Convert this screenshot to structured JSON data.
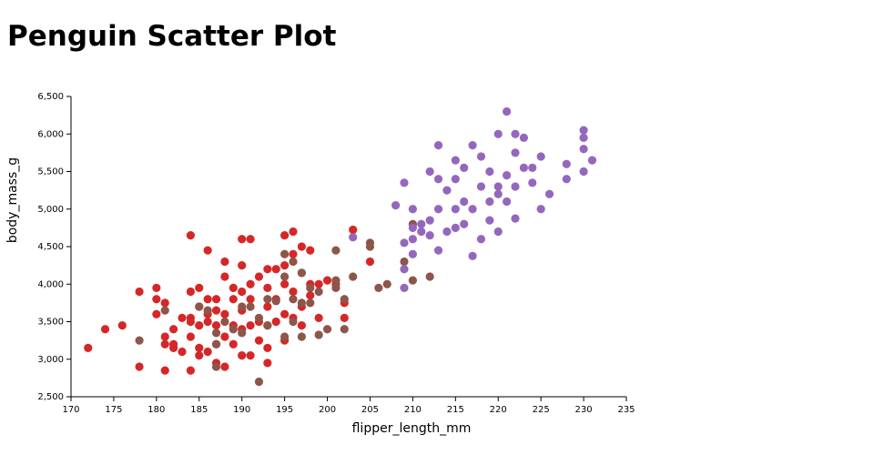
{
  "chart_data": {
    "type": "scatter",
    "title": "Penguin Scatter Plot",
    "x_label": "flipper_length_mm",
    "y_label": "body_mass_g",
    "xlim": [
      170,
      235
    ],
    "xticks": [
      170,
      175,
      180,
      185,
      190,
      195,
      200,
      205,
      210,
      215,
      220,
      225,
      230,
      235
    ],
    "ylim": [
      2500,
      6500
    ],
    "yticks": [
      {
        "value": 2500,
        "label": "2,500"
      },
      {
        "value": 3000,
        "label": "3,000"
      },
      {
        "value": 3500,
        "label": "3,500"
      },
      {
        "value": 4000,
        "label": "4,000"
      },
      {
        "value": 4500,
        "label": "4,500"
      },
      {
        "value": 5000,
        "label": "5,000"
      },
      {
        "value": 5500,
        "label": "5,500"
      },
      {
        "value": 6000,
        "label": "6,000"
      },
      {
        "value": 6500,
        "label": "6,500"
      }
    ],
    "series": [
      {
        "color": "#d62728",
        "x": [
          172,
          174,
          176,
          178,
          178,
          180,
          180,
          180,
          181,
          181,
          181,
          181,
          182,
          182,
          182,
          183,
          183,
          184,
          184,
          184,
          184,
          184,
          184,
          185,
          185,
          185,
          185,
          185,
          186,
          186,
          186,
          186,
          186,
          187,
          187,
          187,
          187,
          187,
          188,
          188,
          188,
          188,
          188,
          189,
          189,
          189,
          189,
          190,
          190,
          190,
          190,
          190,
          190,
          191,
          191,
          191,
          191,
          191,
          192,
          192,
          192,
          193,
          193,
          193,
          193,
          193,
          193,
          194,
          194,
          194,
          195,
          195,
          195,
          195,
          195,
          196,
          196,
          196,
          196,
          197,
          197,
          197,
          197,
          198,
          198,
          198,
          199,
          199,
          200,
          201,
          202,
          202,
          203,
          205
        ],
        "values": [
          3150,
          3400,
          3450,
          3900,
          2900,
          3950,
          3800,
          3600,
          3750,
          3300,
          3200,
          2850,
          3400,
          3200,
          3150,
          3550,
          3100,
          4650,
          3900,
          3550,
          3500,
          3300,
          2850,
          3950,
          3700,
          3450,
          3150,
          3050,
          4450,
          3800,
          3600,
          3500,
          3100,
          3800,
          3650,
          3450,
          3200,
          2950,
          4300,
          4100,
          3600,
          3300,
          2900,
          3950,
          3800,
          3450,
          3200,
          4600,
          4250,
          3900,
          3650,
          3400,
          3050,
          4600,
          4000,
          3800,
          3450,
          3050,
          4100,
          3500,
          3250,
          4200,
          3950,
          3700,
          3450,
          3150,
          2950,
          4200,
          3800,
          3500,
          4650,
          4250,
          4000,
          3600,
          3250,
          4700,
          4400,
          3900,
          3550,
          4500,
          4150,
          3700,
          3450,
          4450,
          4000,
          3850,
          4000,
          3550,
          4050,
          4000,
          3550,
          3750,
          4725,
          4300
        ]
      },
      {
        "color": "#8c564b",
        "x": [
          178,
          181,
          185,
          186,
          187,
          187,
          187,
          188,
          189,
          190,
          190,
          191,
          192,
          192,
          193,
          193,
          194,
          195,
          195,
          195,
          196,
          196,
          196,
          197,
          197,
          197,
          198,
          198,
          199,
          199,
          200,
          201,
          201,
          201,
          202,
          202,
          203,
          205,
          205,
          206,
          207,
          209,
          210,
          210,
          212
        ],
        "values": [
          3250,
          3650,
          3700,
          3650,
          3350,
          3200,
          2900,
          3500,
          3400,
          3700,
          3350,
          3700,
          2700,
          3550,
          3800,
          3450,
          3775,
          4400,
          4100,
          3300,
          4300,
          3800,
          3500,
          4150,
          3750,
          3300,
          3950,
          3750,
          3900,
          3325,
          3400,
          3950,
          4050,
          4450,
          3400,
          3800,
          4100,
          4550,
          4500,
          3950,
          4000,
          4300,
          4800,
          4050,
          4100
        ]
      },
      {
        "color": "#9467bd",
        "x": [
          203,
          208,
          209,
          209,
          209,
          209,
          210,
          210,
          210,
          210,
          211,
          211,
          212,
          212,
          212,
          213,
          213,
          213,
          213,
          214,
          214,
          215,
          215,
          215,
          215,
          216,
          216,
          216,
          217,
          217,
          217,
          218,
          218,
          218,
          219,
          219,
          219,
          220,
          220,
          220,
          220,
          221,
          221,
          221,
          222,
          222,
          222,
          222,
          223,
          223,
          224,
          224,
          225,
          225,
          226,
          228,
          228,
          230,
          230,
          230,
          230,
          231
        ],
        "values": [
          4625,
          5050,
          5350,
          4200,
          4550,
          3950,
          4600,
          4400,
          4750,
          5000,
          4800,
          4700,
          5500,
          4850,
          4650,
          5850,
          5400,
          5000,
          4450,
          4700,
          5250,
          5650,
          5000,
          5400,
          4750,
          5100,
          5550,
          4800,
          5850,
          4375,
          5000,
          5700,
          5300,
          4600,
          5500,
          5100,
          4850,
          6000,
          5300,
          5200,
          4700,
          6300,
          5450,
          5100,
          6000,
          5750,
          5300,
          4875,
          5950,
          5550,
          5550,
          5350,
          5700,
          5000,
          5200,
          5600,
          5400,
          5950,
          5800,
          6050,
          5500,
          5650
        ]
      }
    ]
  }
}
